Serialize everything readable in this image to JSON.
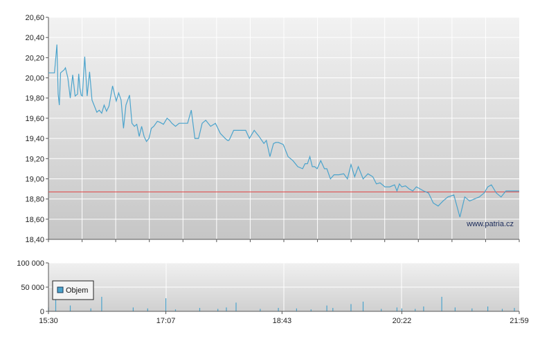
{
  "watermark": "www.patria.cz",
  "colors": {
    "price_line": "#4aa3cc",
    "reference_line": "#e04040",
    "volume_bars": "#4aa3cc",
    "grid": "#ffffff",
    "axis": "#555555"
  },
  "chart_data": [
    {
      "type": "line",
      "title": "",
      "xlabel": "",
      "ylabel": "",
      "ylim": [
        18.4,
        20.6
      ],
      "yticks": [
        "20,60",
        "20,40",
        "20,20",
        "20,00",
        "19,80",
        "19,60",
        "19,40",
        "19,20",
        "19,00",
        "18,80",
        "18,60",
        "18,40"
      ],
      "reference_line": 18.87,
      "grid": true,
      "series": [
        {
          "x": [
            "15:30",
            "15:35",
            "15:37",
            "15:38",
            "15:39",
            "15:40",
            "15:43",
            "15:44",
            "15:46",
            "15:48",
            "15:50",
            "15:52",
            "15:54",
            "15:55",
            "15:56",
            "15:57",
            "15:58",
            "16:00",
            "16:02",
            "16:04",
            "16:06",
            "16:08",
            "16:10",
            "16:12",
            "16:14",
            "16:16",
            "16:18",
            "16:20",
            "16:23",
            "16:26",
            "16:28",
            "16:30",
            "16:32",
            "16:34",
            "16:37",
            "16:39",
            "16:41",
            "16:43",
            "16:45",
            "16:47",
            "16:49",
            "16:51",
            "16:53",
            "16:55",
            "16:57",
            "17:00",
            "17:02",
            "17:05",
            "17:08",
            "17:10",
            "17:12",
            "17:15",
            "17:18",
            "17:20",
            "17:22",
            "17:25",
            "17:28",
            "17:31",
            "17:34",
            "17:37",
            "17:40",
            "17:44",
            "17:48",
            "17:52",
            "17:56",
            "17:58",
            "17:59",
            "18:00",
            "18:03",
            "18:06",
            "18:08",
            "18:10",
            "18:13",
            "18:16",
            "18:20",
            "18:24",
            "18:28",
            "18:30",
            "18:33",
            "18:36",
            "18:38",
            "18:40",
            "18:44",
            "18:48",
            "18:52",
            "18:56",
            "19:00",
            "19:02",
            "19:04",
            "19:06",
            "19:08",
            "19:10",
            "19:12",
            "19:15",
            "19:18",
            "19:20",
            "19:23",
            "19:26",
            "19:30",
            "19:34",
            "19:37",
            "19:40",
            "19:43",
            "19:46",
            "19:50",
            "19:54",
            "19:58",
            "20:01",
            "20:04",
            "20:08",
            "20:12",
            "20:16",
            "20:18",
            "20:20",
            "20:22",
            "20:25",
            "20:28",
            "20:31",
            "20:34",
            "20:37",
            "20:40",
            "20:44",
            "20:48",
            "20:52",
            "20:56",
            "21:00",
            "21:05",
            "21:10",
            "21:14",
            "21:18",
            "21:22",
            "21:26",
            "21:30",
            "21:33",
            "21:36",
            "21:40",
            "21:44",
            "21:48",
            "21:52",
            "21:55",
            "21:57",
            "21:59"
          ],
          "y": [
            20.05,
            20.05,
            20.33,
            19.84,
            19.73,
            20.05,
            20.08,
            20.1,
            20.0,
            19.8,
            20.03,
            19.82,
            19.84,
            20.04,
            19.9,
            19.83,
            19.82,
            20.21,
            19.82,
            20.06,
            19.78,
            19.72,
            19.66,
            19.68,
            19.65,
            19.73,
            19.67,
            19.72,
            19.92,
            19.77,
            19.85,
            19.78,
            19.5,
            19.73,
            19.83,
            19.55,
            19.52,
            19.54,
            19.42,
            19.52,
            19.42,
            19.37,
            19.4,
            19.5,
            19.52,
            19.57,
            19.56,
            19.54,
            19.6,
            19.58,
            19.55,
            19.52,
            19.55,
            19.55,
            19.55,
            19.55,
            19.68,
            19.4,
            19.4,
            19.55,
            19.58,
            19.52,
            19.55,
            19.45,
            19.4,
            19.38,
            19.38,
            19.4,
            19.48,
            19.48,
            19.48,
            19.48,
            19.48,
            19.4,
            19.48,
            19.42,
            19.35,
            19.38,
            19.22,
            19.35,
            19.36,
            19.36,
            19.34,
            19.22,
            19.18,
            19.12,
            19.1,
            19.15,
            19.15,
            19.22,
            19.12,
            19.12,
            19.1,
            19.18,
            19.1,
            19.1,
            19.0,
            19.04,
            19.04,
            19.05,
            19.0,
            19.14,
            19.02,
            19.12,
            19.0,
            19.05,
            19.02,
            18.95,
            18.96,
            18.92,
            18.92,
            18.94,
            18.88,
            18.95,
            18.92,
            18.93,
            18.9,
            18.88,
            18.92,
            18.9,
            18.88,
            18.86,
            18.76,
            18.73,
            18.78,
            18.82,
            18.84,
            18.62,
            18.82,
            18.78,
            18.8,
            18.82,
            18.86,
            18.92,
            18.94,
            18.86,
            18.82,
            18.88,
            18.88,
            18.88,
            18.88,
            18.88
          ]
        }
      ]
    },
    {
      "type": "bar",
      "title": "",
      "xlabel": "",
      "ylabel": "",
      "ylim": [
        0,
        100000
      ],
      "yticks": [
        "100 000",
        "50 000",
        "0"
      ],
      "xticks": [
        "15:30",
        "17:07",
        "18:43",
        "20:22",
        "21:59"
      ],
      "legend": "top-left",
      "grid": true,
      "series": [
        {
          "name": "Objem",
          "x": [
            "15:30",
            "15:36",
            "15:48",
            "16:05",
            "16:14",
            "16:40",
            "16:52",
            "17:07",
            "17:15",
            "17:35",
            "17:50",
            "17:57",
            "18:05",
            "18:25",
            "18:40",
            "18:55",
            "19:07",
            "19:20",
            "19:25",
            "19:40",
            "19:50",
            "20:05",
            "20:18",
            "20:22",
            "20:33",
            "20:40",
            "20:55",
            "21:06",
            "21:20",
            "21:33",
            "21:45",
            "21:55"
          ],
          "values": [
            8000,
            52000,
            12000,
            6000,
            30000,
            8000,
            6000,
            27000,
            4000,
            7000,
            5000,
            8000,
            18000,
            5000,
            7000,
            6000,
            4000,
            12000,
            7000,
            15000,
            20000,
            5000,
            8000,
            6000,
            5000,
            10000,
            30000,
            8000,
            6000,
            10000,
            5000,
            7000
          ]
        }
      ]
    }
  ]
}
